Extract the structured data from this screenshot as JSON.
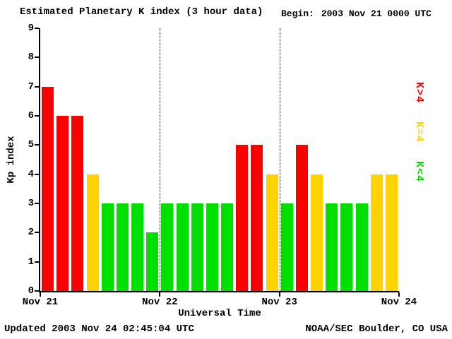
{
  "title": "Estimated Planetary K index (3 hour data)",
  "begin_label": "Begin:",
  "begin_value": "2003 Nov 21 0000 UTC",
  "footer": {
    "updated": "Updated 2003 Nov 24 02:45:04 UTC",
    "source": "NOAA/SEC Boulder, CO USA"
  },
  "chart_data": {
    "type": "bar",
    "title": "Estimated Planetary K index (3 hour data)",
    "xlabel": "Universal Time",
    "ylabel": "Kp index",
    "ylim": [
      0,
      9
    ],
    "yticks": [
      0,
      1,
      2,
      3,
      4,
      5,
      6,
      7,
      8,
      9
    ],
    "x_day_labels": [
      "Nov 21",
      "Nov 22",
      "Nov 23",
      "Nov 24"
    ],
    "bars_per_day": 8,
    "bar_interval_hours": 3,
    "values": [
      7,
      6,
      6,
      4,
      3,
      3,
      3,
      2,
      3,
      3,
      3,
      3,
      3,
      5,
      5,
      4,
      3,
      5,
      4,
      3,
      3,
      3,
      4,
      4
    ],
    "color_rules": {
      "gt4": "#fb0000",
      "eq4": "#ffd300",
      "lt4": "#00df00"
    },
    "legend": [
      {
        "label": "K>4",
        "color": "#fb0000"
      },
      {
        "label": "K=4",
        "color": "#ffd300"
      },
      {
        "label": "K<4",
        "color": "#00df00"
      }
    ],
    "grid": "dotted-day-separators",
    "legend_position": "right-rotated"
  }
}
